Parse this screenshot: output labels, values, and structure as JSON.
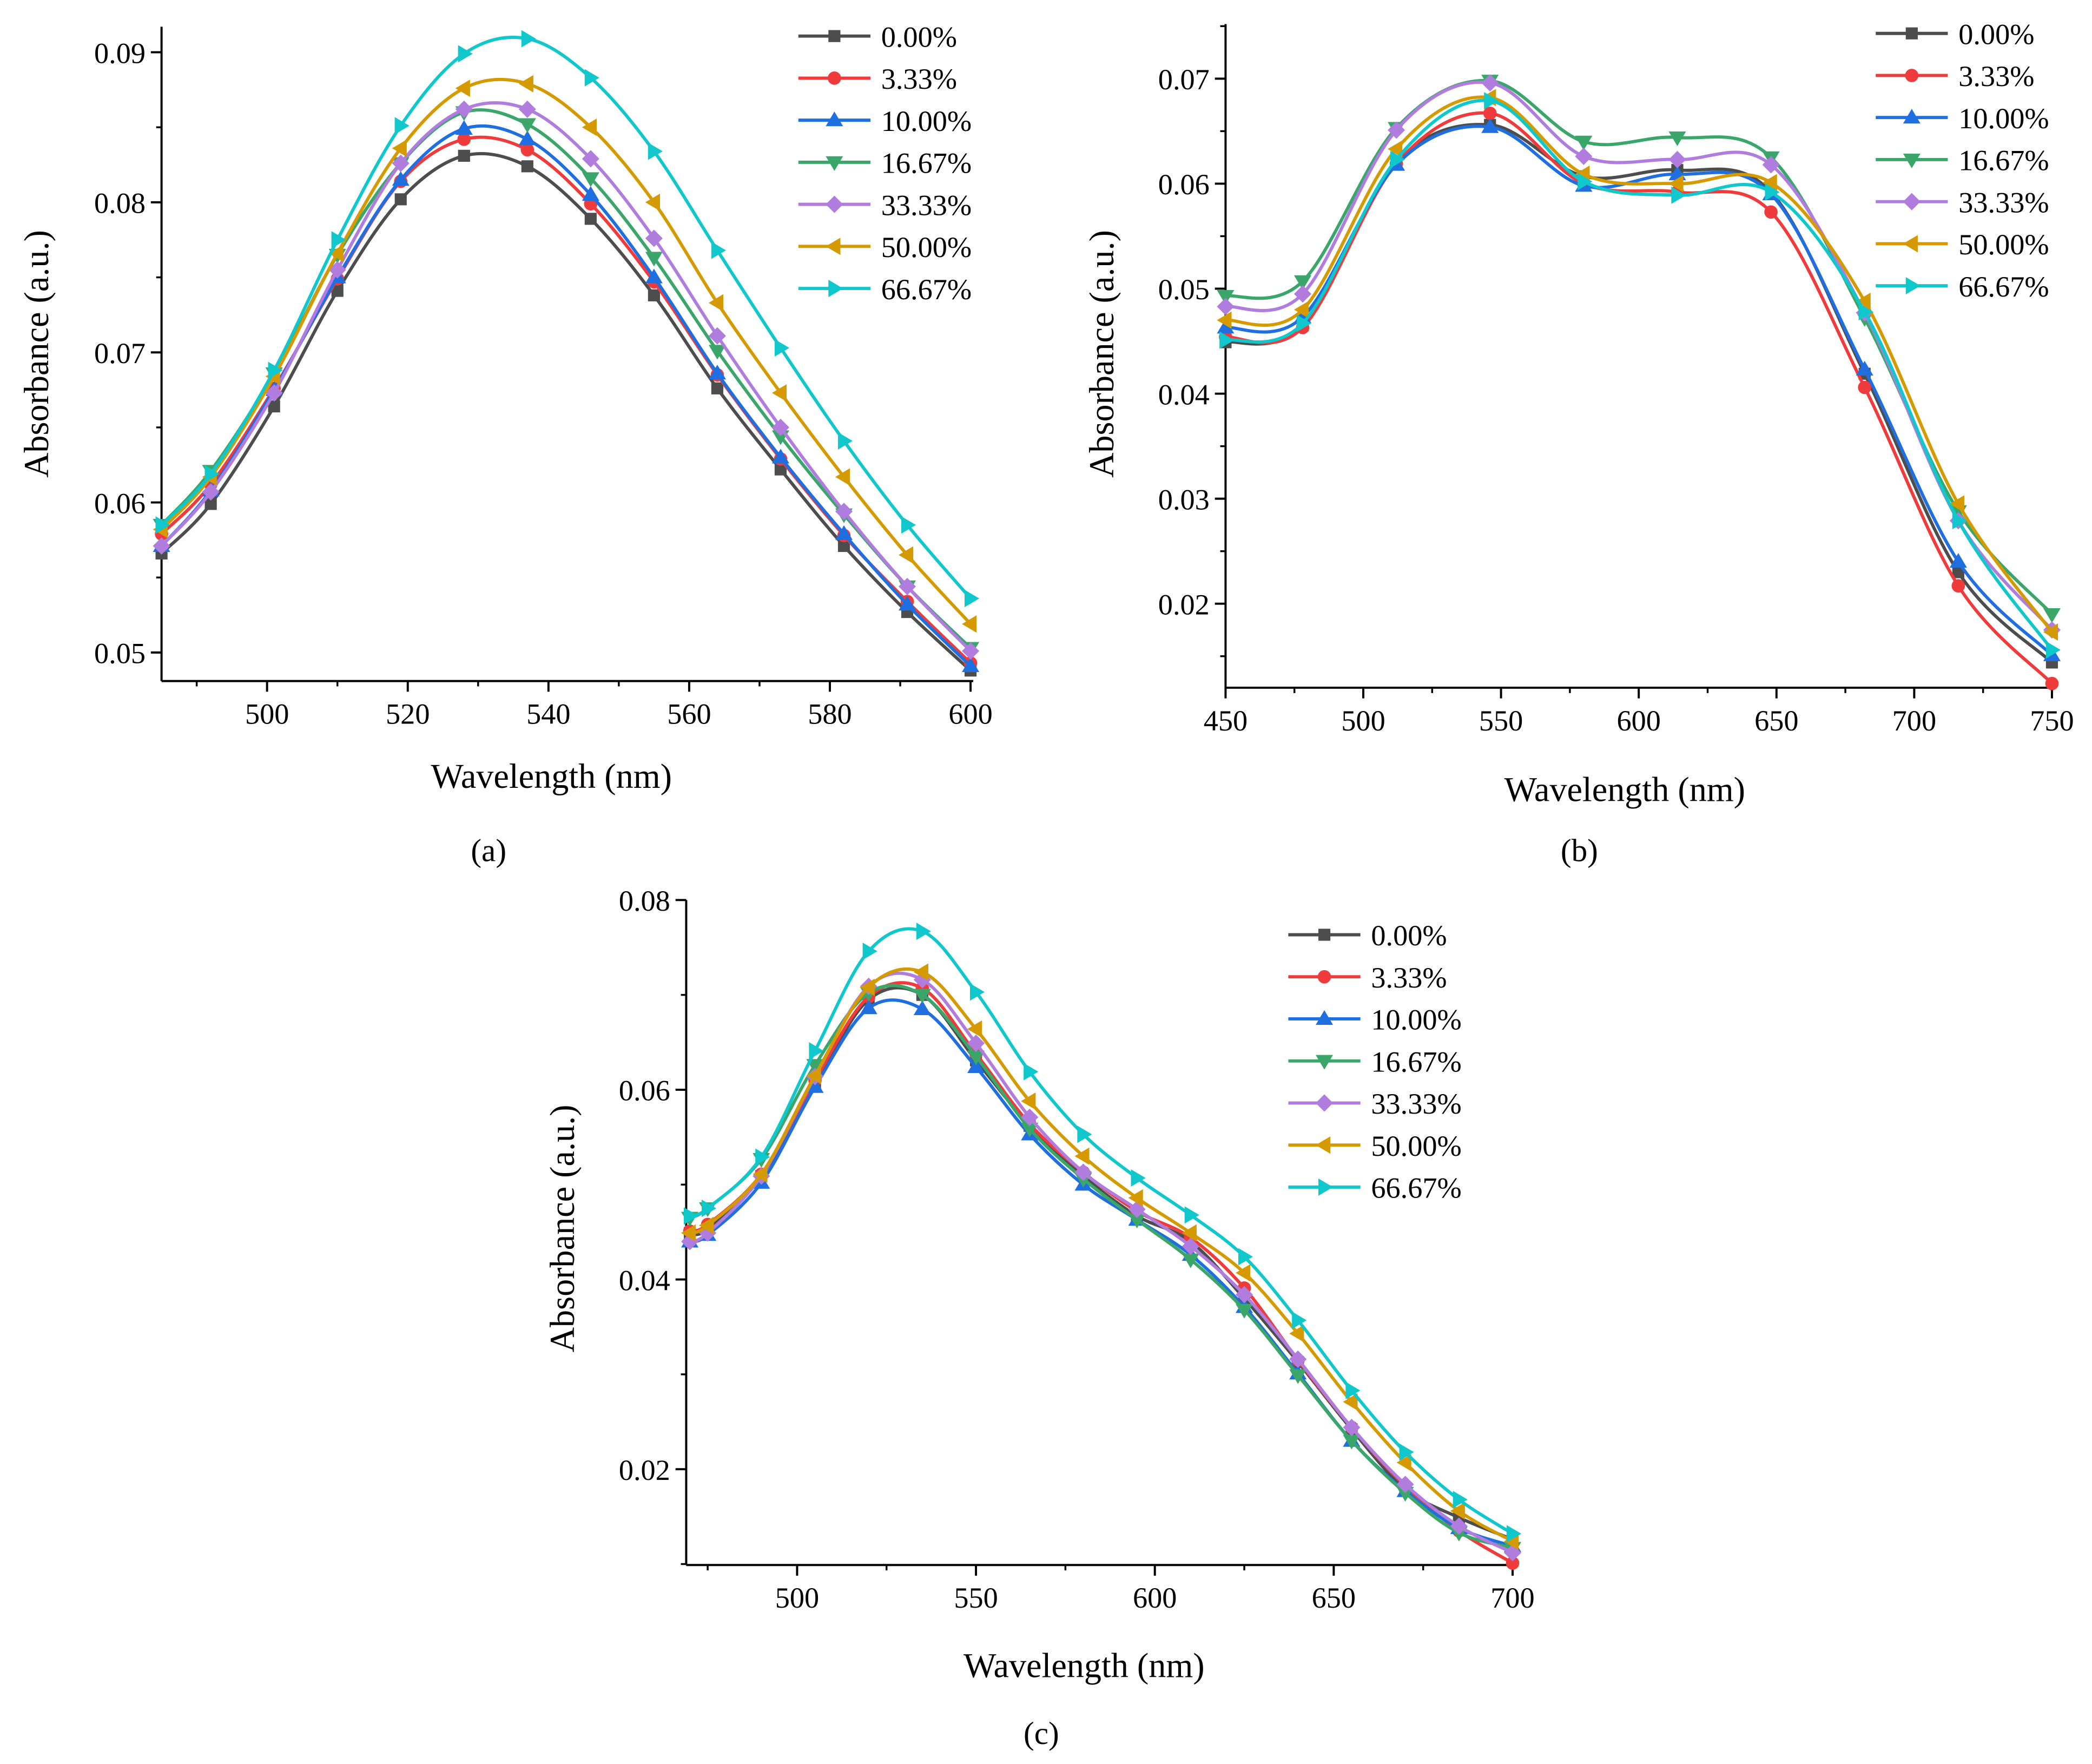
{
  "series_names": [
    "0.00%",
    "3.33%",
    "10.00%",
    "16.67%",
    "33.33%",
    "50.00%",
    "66.67%"
  ],
  "series_colors": [
    "#4d4d4d",
    "#ef3b3b",
    "#1f6fe0",
    "#3aa66a",
    "#b07ddf",
    "#d49a00",
    "#10c7cc"
  ],
  "series_markers": [
    "square",
    "circle",
    "triangle-up",
    "triangle-down",
    "diamond",
    "triangle-left",
    "triangle-right"
  ],
  "chart_data": [
    {
      "type": "line",
      "panel_label": "(a)",
      "xlabel": "Wavelength (nm)",
      "ylabel": "Absorbance (a.u.)",
      "xlim": [
        485,
        600
      ],
      "ylim": [
        0.0481,
        0.0917
      ],
      "xticks": [
        500,
        520,
        540,
        560,
        580,
        600
      ],
      "xminor": 10,
      "yticks": [
        0.05,
        0.06,
        0.07,
        0.08,
        0.09
      ],
      "yminor": 0.005,
      "ytick_labels": [
        "0.05",
        "0.06",
        "0.07",
        "0.08",
        "0.09"
      ],
      "legend": "top-right",
      "x": [
        485,
        492,
        501,
        510,
        519,
        528,
        537,
        546,
        555,
        564,
        573,
        582,
        591,
        600
      ],
      "series": [
        {
          "name": "0.00%",
          "values": [
            0.0566,
            0.0599,
            0.0664,
            0.0741,
            0.0802,
            0.0831,
            0.0824,
            0.0789,
            0.0738,
            0.0676,
            0.0622,
            0.0571,
            0.0527,
            0.0488
          ]
        },
        {
          "name": "3.33%",
          "values": [
            0.0579,
            0.0612,
            0.0676,
            0.0749,
            0.0814,
            0.0842,
            0.0835,
            0.0799,
            0.0747,
            0.0685,
            0.0629,
            0.0578,
            0.0534,
            0.0493
          ]
        },
        {
          "name": "10.00%",
          "values": [
            0.0571,
            0.0608,
            0.0675,
            0.075,
            0.0815,
            0.0849,
            0.0842,
            0.0805,
            0.075,
            0.0686,
            0.063,
            0.0579,
            0.0532,
            0.0491
          ]
        },
        {
          "name": "16.67%",
          "values": [
            0.0585,
            0.0621,
            0.0686,
            0.0765,
            0.0826,
            0.086,
            0.0852,
            0.0816,
            0.0763,
            0.0701,
            0.0644,
            0.0592,
            0.0544,
            0.0503
          ]
        },
        {
          "name": "33.33%",
          "values": [
            0.0571,
            0.0607,
            0.0673,
            0.0755,
            0.0826,
            0.0862,
            0.0862,
            0.0829,
            0.0776,
            0.0711,
            0.065,
            0.0594,
            0.0544,
            0.0501
          ]
        },
        {
          "name": "50.00%",
          "values": [
            0.0582,
            0.0617,
            0.0684,
            0.0766,
            0.0836,
            0.0876,
            0.0879,
            0.085,
            0.08,
            0.0733,
            0.0673,
            0.0617,
            0.0565,
            0.0519
          ]
        },
        {
          "name": "66.67%",
          "values": [
            0.0585,
            0.0619,
            0.0688,
            0.0775,
            0.0851,
            0.0899,
            0.0909,
            0.0883,
            0.0834,
            0.0768,
            0.0703,
            0.0641,
            0.0585,
            0.0536
          ]
        }
      ]
    },
    {
      "type": "line",
      "panel_label": "(b)",
      "xlabel": "Wavelength (nm)",
      "ylabel": "Absorbance (a.u.)",
      "xlim": [
        450,
        750
      ],
      "ylim": [
        0.012,
        0.0752
      ],
      "xticks": [
        450,
        500,
        550,
        600,
        650,
        700,
        750
      ],
      "xminor": 25,
      "yticks": [
        0.02,
        0.03,
        0.04,
        0.05,
        0.06,
        0.07
      ],
      "yminor": 0.005,
      "ytick_labels": [
        "0.02",
        "0.03",
        "0.04",
        "0.05",
        "0.06",
        "0.07"
      ],
      "legend": "top-right",
      "x": [
        450,
        478,
        512,
        546,
        580,
        614,
        648,
        682,
        716,
        750
      ],
      "series": [
        {
          "name": "0.00%",
          "values": [
            0.0449,
            0.0465,
            0.062,
            0.0656,
            0.0607,
            0.0613,
            0.0592,
            0.0419,
            0.023,
            0.0144
          ]
        },
        {
          "name": "3.33%",
          "values": [
            0.0454,
            0.0463,
            0.0619,
            0.0667,
            0.06,
            0.0592,
            0.0573,
            0.0406,
            0.0217,
            0.0124
          ]
        },
        {
          "name": "10.00%",
          "values": [
            0.0463,
            0.0473,
            0.0618,
            0.0654,
            0.0598,
            0.0609,
            0.059,
            0.0423,
            0.024,
            0.0151
          ]
        },
        {
          "name": "16.67%",
          "values": [
            0.0493,
            0.0507,
            0.0653,
            0.0698,
            0.064,
            0.0644,
            0.0625,
            0.0472,
            0.0288,
            0.019
          ]
        },
        {
          "name": "33.33%",
          "values": [
            0.0483,
            0.0495,
            0.0651,
            0.0696,
            0.0626,
            0.0623,
            0.0618,
            0.0477,
            0.0279,
            0.0175
          ]
        },
        {
          "name": "50.00%",
          "values": [
            0.047,
            0.048,
            0.0633,
            0.0682,
            0.0609,
            0.06,
            0.0601,
            0.0488,
            0.0295,
            0.0173
          ]
        },
        {
          "name": "66.67%",
          "values": [
            0.0451,
            0.0467,
            0.0623,
            0.0679,
            0.0602,
            0.0589,
            0.0592,
            0.0478,
            0.0279,
            0.0156
          ]
        }
      ]
    },
    {
      "type": "line",
      "panel_label": "(c)",
      "xlabel": "Wavelength (nm)",
      "ylabel": "Absorbance (a.u.)",
      "xlim": [
        469,
        700
      ],
      "ylim": [
        0.0099,
        0.08
      ],
      "xticks": [
        500,
        550,
        600,
        650,
        700
      ],
      "xminor": 25,
      "yticks": [
        0.02,
        0.04,
        0.06,
        0.08
      ],
      "yminor": 0.01,
      "ytick_labels": [
        "0.02",
        "0.04",
        "0.06",
        "0.08"
      ],
      "legend": "top-right",
      "x": [
        470,
        475,
        490,
        505,
        520,
        535,
        550,
        565,
        580,
        595,
        610,
        625,
        640,
        655,
        670,
        685,
        700
      ],
      "series": [
        {
          "name": "0.00%",
          "values": [
            0.0449,
            0.0453,
            0.0509,
            0.0606,
            0.0695,
            0.07,
            0.0631,
            0.0562,
            0.0509,
            0.0467,
            0.044,
            0.038,
            0.0313,
            0.0242,
            0.0179,
            0.0149,
            0.0126
          ]
        },
        {
          "name": "3.33%",
          "values": [
            0.0451,
            0.0458,
            0.0511,
            0.061,
            0.0698,
            0.0707,
            0.0638,
            0.0564,
            0.0513,
            0.0472,
            0.0444,
            0.0391,
            0.0315,
            0.0244,
            0.0182,
            0.0135,
            0.0101
          ]
        },
        {
          "name": "10.00%",
          "values": [
            0.044,
            0.0447,
            0.0502,
            0.0603,
            0.0686,
            0.0685,
            0.0624,
            0.0553,
            0.05,
            0.0463,
            0.0426,
            0.0371,
            0.0301,
            0.023,
            0.0177,
            0.0138,
            0.0119
          ]
        },
        {
          "name": "16.67%",
          "values": [
            0.0465,
            0.0475,
            0.0527,
            0.0626,
            0.0702,
            0.07,
            0.0635,
            0.0559,
            0.0506,
            0.0463,
            0.0421,
            0.0368,
            0.0299,
            0.023,
            0.0175,
            0.0133,
            0.0117
          ]
        },
        {
          "name": "33.33%",
          "values": [
            0.044,
            0.0449,
            0.0509,
            0.0614,
            0.0709,
            0.0716,
            0.0649,
            0.0571,
            0.0513,
            0.0474,
            0.0435,
            0.0384,
            0.0316,
            0.0244,
            0.0184,
            0.014,
            0.0112
          ]
        },
        {
          "name": "50.00%",
          "values": [
            0.0449,
            0.0457,
            0.0511,
            0.0615,
            0.0708,
            0.0724,
            0.0664,
            0.0588,
            0.053,
            0.0486,
            0.0449,
            0.0407,
            0.0343,
            0.0271,
            0.0207,
            0.0156,
            0.0124
          ]
        },
        {
          "name": "66.67%",
          "values": [
            0.0467,
            0.0475,
            0.0529,
            0.0641,
            0.0746,
            0.0767,
            0.0703,
            0.0619,
            0.0553,
            0.0507,
            0.0468,
            0.0424,
            0.0357,
            0.0283,
            0.0218,
            0.0168,
            0.0132
          ]
        }
      ]
    }
  ]
}
